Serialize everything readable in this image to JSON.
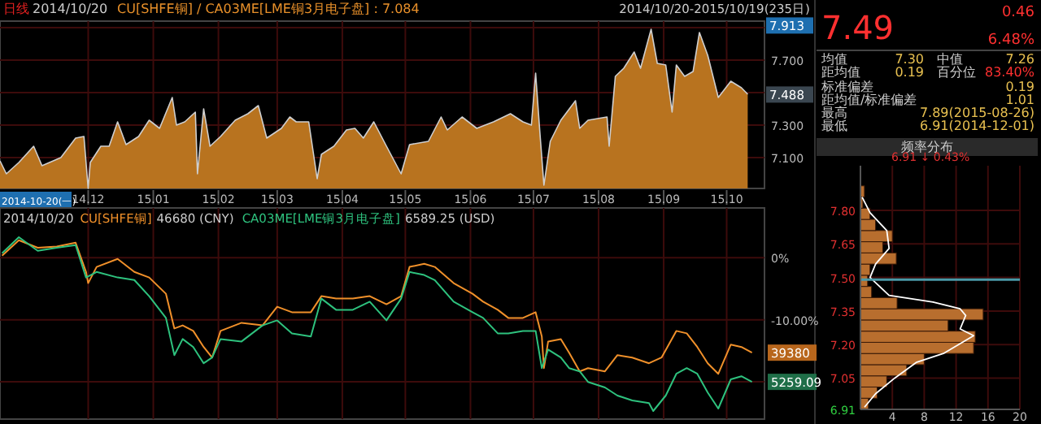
{
  "chart_data": [
    {
      "type": "area",
      "title": "CU[SHFE铜] / CA03ME[LME铜3月电子盘] : 7.084",
      "annotations": [
        "日线",
        "2014/10/20",
        "2014/10/20-2015/10/19(235日)",
        "2014-10-20(一)",
        {
          "text": "7.913",
          "y": 7.913
        },
        {
          "text": "7.488",
          "y": 7.488
        }
      ],
      "x": [
        "2014-10-20",
        "2014-10-23",
        "2014-10-29",
        "2014-11-05",
        "2014-11-09",
        "2014-11-18",
        "2014-11-25",
        "2014-11-29",
        "2014-12-01",
        "2014-12-02",
        "2014-12-07",
        "2014-12-11",
        "2014-12-15",
        "2014-12-19",
        "2014-12-25",
        "2014-12-30",
        "2015-01-04",
        "2015-01-10",
        "2015-01-12",
        "2015-01-16",
        "2015-01-21",
        "2015-01-22",
        "2015-01-25",
        "2015-01-28",
        "2015-02-02",
        "2015-02-09",
        "2015-02-15",
        "2015-02-20",
        "2015-02-24",
        "2015-03-03",
        "2015-03-07",
        "2015-03-10",
        "2015-03-16",
        "2015-03-20",
        "2015-03-22",
        "2015-03-28",
        "2015-04-03",
        "2015-04-07",
        "2015-04-11",
        "2015-04-16",
        "2015-04-22",
        "2015-04-29",
        "2015-05-03",
        "2015-05-12",
        "2015-05-18",
        "2015-05-21",
        "2015-05-28",
        "2015-06-04",
        "2015-06-12",
        "2015-06-20",
        "2015-06-26",
        "2015-06-30",
        "2015-07-02",
        "2015-07-04",
        "2015-07-06",
        "2015-07-09",
        "2015-07-14",
        "2015-07-21",
        "2015-07-23",
        "2015-07-27",
        "2015-08-05",
        "2015-08-06",
        "2015-08-09",
        "2015-08-13",
        "2015-08-18",
        "2015-08-21",
        "2015-08-26",
        "2015-08-29",
        "2015-09-02",
        "2015-09-05",
        "2015-09-07",
        "2015-09-11",
        "2015-09-15",
        "2015-09-18",
        "2015-09-22",
        "2015-09-27",
        "2015-10-03",
        "2015-10-08",
        "2015-10-11"
      ],
      "series": [
        {
          "color": "#b8731f",
          "values": [
            7.08,
            7.0,
            7.07,
            7.17,
            7.05,
            7.1,
            7.22,
            7.23,
            6.91,
            7.07,
            7.17,
            7.17,
            7.32,
            7.18,
            7.23,
            7.33,
            7.28,
            7.47,
            7.3,
            7.32,
            7.38,
            7.0,
            7.4,
            7.17,
            7.23,
            7.33,
            7.37,
            7.42,
            7.22,
            7.28,
            7.35,
            7.32,
            7.32,
            6.97,
            7.12,
            7.17,
            7.27,
            7.28,
            7.22,
            7.32,
            7.17,
            7.0,
            7.18,
            7.2,
            7.35,
            7.27,
            7.35,
            7.28,
            7.32,
            7.37,
            7.32,
            7.3,
            7.62,
            7.27,
            6.93,
            7.2,
            7.33,
            7.45,
            7.28,
            7.33,
            7.35,
            7.17,
            7.6,
            7.65,
            7.75,
            7.65,
            7.89,
            7.68,
            7.67,
            7.38,
            7.67,
            7.6,
            7.63,
            7.87,
            7.73,
            7.47,
            7.57,
            7.53,
            7.49
          ]
        }
      ],
      "xlim": [
        "2014-10-20",
        "2015-10-19"
      ],
      "xticks": [
        {
          "value": "2014-12-01",
          "label": "14.12"
        },
        {
          "value": "2015-01-01",
          "label": "15.01"
        },
        {
          "value": "2015-02-01",
          "label": "15.02"
        },
        {
          "value": "2015-03-01",
          "label": "15.03"
        },
        {
          "value": "2015-04-01",
          "label": "15.04"
        },
        {
          "value": "2015-05-01",
          "label": "15.05"
        },
        {
          "value": "2015-06-01",
          "label": "15.06"
        },
        {
          "value": "2015-07-01",
          "label": "15.07"
        },
        {
          "value": "2015-08-01",
          "label": "15.08"
        },
        {
          "value": "2015-09-01",
          "label": "15.09"
        },
        {
          "value": "2015-10-01",
          "label": "15.10"
        }
      ],
      "ylim": [
        6.91,
        7.94
      ],
      "yticks": [
        {
          "value": 7.1,
          "label": "7.100"
        },
        {
          "value": 7.3,
          "label": "7.300"
        },
        {
          "value": 7.5,
          "label": null
        },
        {
          "value": 7.7,
          "label": "7.700"
        },
        {
          "value": 7.9,
          "label": null
        }
      ],
      "grid": true
    },
    {
      "type": "line",
      "tick_labels": "y",
      "legend": "top left",
      "annotations": [
        "2014/10/20",
        "46680 (CNY)",
        "6589.25 (USD)",
        "39380",
        "5259.09"
      ],
      "series": [
        {
          "name": "CU[SHFE铜]",
          "color": "#f0902a",
          "x": [
            "2014-10-21",
            "2014-10-29",
            "2014-11-07",
            "2014-11-16",
            "2014-11-25",
            "2014-11-30",
            "2014-12-01",
            "2014-12-05",
            "2014-12-15",
            "2014-12-23",
            "2014-12-30",
            "2015-01-07",
            "2015-01-11",
            "2015-01-15",
            "2015-01-20",
            "2015-01-25",
            "2015-01-29",
            "2015-02-02",
            "2015-02-12",
            "2015-02-22",
            "2015-03-01",
            "2015-03-08",
            "2015-03-17",
            "2015-03-22",
            "2015-03-29",
            "2015-04-06",
            "2015-04-14",
            "2015-04-22",
            "2015-04-29",
            "2015-05-03",
            "2015-05-10",
            "2015-05-15",
            "2015-05-24",
            "2015-06-02",
            "2015-06-07",
            "2015-06-14",
            "2015-06-19",
            "2015-06-26",
            "2015-07-02",
            "2015-07-05",
            "2015-07-06",
            "2015-07-08",
            "2015-07-14",
            "2015-07-18",
            "2015-07-23",
            "2015-07-27",
            "2015-08-04",
            "2015-08-10",
            "2015-08-17",
            "2015-08-25",
            "2015-08-31",
            "2015-09-07",
            "2015-09-12",
            "2015-09-17",
            "2015-09-22",
            "2015-09-27",
            "2015-10-03",
            "2015-10-08",
            "2015-10-13"
          ],
          "values": [
            0.3,
            2.8,
            1.6,
            1.8,
            2.4,
            -2.3,
            -4.1,
            -1.5,
            -0.2,
            -2.3,
            -3.2,
            -5.8,
            -11.4,
            -10.9,
            -11.8,
            -14.4,
            -16.1,
            -11.8,
            -10.5,
            -10.9,
            -7.9,
            -8.8,
            -8.8,
            -6.2,
            -6.6,
            -6.6,
            -6.2,
            -7.5,
            -6.2,
            -1.5,
            -1.0,
            -1.5,
            -4.1,
            -5.8,
            -7.1,
            -8.4,
            -9.7,
            -9.7,
            -8.8,
            -12.7,
            -17.8,
            -13.5,
            -13.1,
            -15.3,
            -18.3,
            -17.8,
            -18.3,
            -15.7,
            -16.1,
            -17.0,
            -16.1,
            -11.8,
            -12.2,
            -14.4,
            -17.0,
            -18.7,
            -14.0,
            -14.4,
            -15.3
          ]
        },
        {
          "name": "CA03ME[LME铜3月电子盘]",
          "color": "#2ec27e",
          "x": [
            "2014-10-21",
            "2014-10-29",
            "2014-11-07",
            "2014-11-16",
            "2014-11-25",
            "2014-11-30",
            "2014-12-05",
            "2014-12-15",
            "2014-12-23",
            "2014-12-30",
            "2015-01-07",
            "2015-01-11",
            "2015-01-15",
            "2015-01-20",
            "2015-01-25",
            "2015-01-29",
            "2015-02-02",
            "2015-02-12",
            "2015-02-22",
            "2015-03-01",
            "2015-03-08",
            "2015-03-17",
            "2015-03-22",
            "2015-03-29",
            "2015-04-06",
            "2015-04-14",
            "2015-04-22",
            "2015-04-29",
            "2015-05-03",
            "2015-05-10",
            "2015-05-15",
            "2015-05-24",
            "2015-06-02",
            "2015-06-07",
            "2015-06-14",
            "2015-06-19",
            "2015-06-26",
            "2015-07-02",
            "2015-07-05",
            "2015-07-08",
            "2015-07-14",
            "2015-07-18",
            "2015-07-23",
            "2015-07-27",
            "2015-08-04",
            "2015-08-10",
            "2015-08-17",
            "2015-08-25",
            "2015-08-27",
            "2015-09-02",
            "2015-09-07",
            "2015-09-12",
            "2015-09-17",
            "2015-09-22",
            "2015-09-27",
            "2015-10-03",
            "2015-10-08",
            "2015-10-13"
          ],
          "values": [
            0.7,
            3.3,
            1.1,
            1.6,
            2.0,
            -3.2,
            -2.3,
            -3.2,
            -3.6,
            -6.2,
            -9.7,
            -15.7,
            -13.1,
            -14.4,
            -17.0,
            -16.1,
            -13.1,
            -13.5,
            -10.9,
            -10.1,
            -12.2,
            -12.7,
            -6.6,
            -8.4,
            -8.4,
            -7.1,
            -10.1,
            -6.6,
            -2.3,
            -2.8,
            -3.6,
            -7.1,
            -8.8,
            -9.7,
            -12.2,
            -12.2,
            -11.8,
            -11.8,
            -17.8,
            -14.8,
            -16.1,
            -17.8,
            -18.3,
            -20.0,
            -20.9,
            -22.2,
            -23.0,
            -23.4,
            -24.7,
            -22.2,
            -18.7,
            -17.8,
            -18.7,
            -21.7,
            -24.3,
            -19.6,
            -19.1,
            -20.0
          ]
        }
      ],
      "xlim": [
        "2014-10-20",
        "2015-10-19"
      ],
      "xticks": [
        {
          "value": "2014-12-01",
          "label": null
        },
        {
          "value": "2015-01-01",
          "label": null
        },
        {
          "value": "2015-02-01",
          "label": null
        },
        {
          "value": "2015-03-01",
          "label": null
        },
        {
          "value": "2015-04-01",
          "label": null
        },
        {
          "value": "2015-05-01",
          "label": null
        },
        {
          "value": "2015-06-01",
          "label": null
        },
        {
          "value": "2015-07-01",
          "label": null
        },
        {
          "value": "2015-08-01",
          "label": null
        },
        {
          "value": "2015-09-01",
          "label": null
        },
        {
          "value": "2015-10-01",
          "label": null
        }
      ],
      "ylim": [
        -26,
        8
      ],
      "yticks": [
        {
          "value": 0,
          "label": "0%"
        },
        {
          "value": -10,
          "label": "-10.00%"
        },
        {
          "value": -20,
          "label": null
        }
      ],
      "grid": true
    },
    {
      "type": "histogram",
      "title": "频率分布",
      "orientation": "horizontal",
      "color": "#b86e2e",
      "annotations": [
        "6.91 ↓ 0.43%"
      ],
      "bins": [
        6.91,
        6.96,
        7.01,
        7.06,
        7.11,
        7.16,
        7.21,
        7.26,
        7.31,
        7.36,
        7.41,
        7.46,
        7.51,
        7.56,
        7.61,
        7.66,
        7.71,
        7.76,
        7.81,
        7.86,
        7.91
      ],
      "values": [
        1.0,
        2.1,
        3.3,
        5.8,
        8.0,
        14.2,
        14.4,
        11.0,
        15.4,
        4.6,
        1.4,
        0.9,
        1.2,
        4.5,
        2.8,
        4.0,
        1.9,
        1.2,
        0.3,
        0.5
      ],
      "series": [
        {
          "type": "line",
          "color": "#ffffff",
          "x": [
            6.92,
            6.98,
            7.05,
            7.12,
            7.16,
            7.24,
            7.27,
            7.33,
            7.36,
            7.39,
            7.42,
            7.5,
            7.56,
            7.63,
            7.71,
            7.79,
            7.86
          ],
          "values": [
            0.5,
            1.9,
            4.3,
            7.0,
            10.4,
            14.2,
            12.5,
            13.2,
            12.5,
            9.1,
            3.6,
            1.2,
            1.9,
            3.6,
            3.3,
            1.2,
            0.2
          ]
        }
      ],
      "ref_lines": [
        {
          "axis": "y",
          "value": 7.49,
          "color": "#4a9aa8"
        }
      ],
      "xlim": [
        0,
        20
      ],
      "xticks": [
        4,
        8,
        12,
        16,
        20
      ],
      "ylim": [
        6.91,
        8.0
      ],
      "yticks": [
        {
          "value": 6.91,
          "label": "6.91"
        },
        {
          "value": 7.05,
          "label": "7.05"
        },
        {
          "value": 7.2,
          "label": "7.20"
        },
        {
          "value": 7.35,
          "label": "7.35"
        },
        {
          "value": 7.5,
          "label": "7.50"
        },
        {
          "value": 7.65,
          "label": "7.65"
        },
        {
          "value": 7.8,
          "label": "7.80"
        }
      ],
      "grid": true
    },
    {
      "type": "other",
      "annotations": [
        "7.49",
        "0.46",
        "6.48%",
        "均值",
        "7.30",
        "中值",
        "7.26",
        "距均值",
        "0.19",
        "百分位",
        "83.40%",
        "标准偏差",
        "0.19",
        "距均值/标准偏差",
        "1.01",
        "最高",
        "7.89(2015-08-26)",
        "最低",
        "6.91(2014-12-01)"
      ]
    }
  ]
}
